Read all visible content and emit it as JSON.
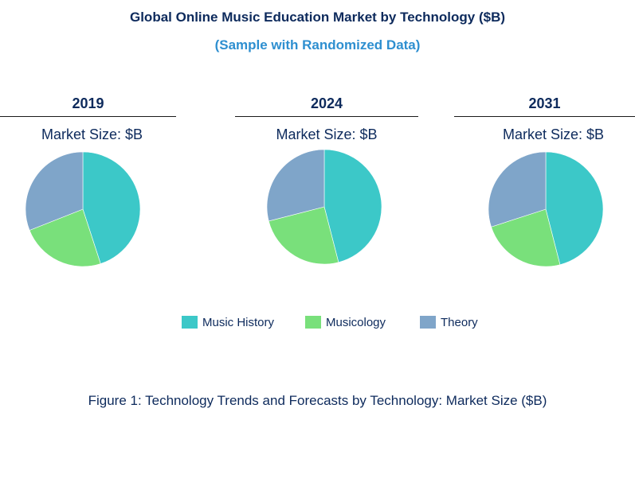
{
  "header": {
    "title": "Global Online Music Education Market by Technology ($B)",
    "subtitle": "(Sample with Randomized Data)"
  },
  "colors": {
    "music_history": "#3cc8c8",
    "musicology": "#79e07b",
    "theory": "#7fa5c9",
    "title": "#0d2a5c",
    "subtitle": "#2e8fd0"
  },
  "chart_data": [
    {
      "type": "pie",
      "title": "2019",
      "subtitle": "Market Size: $B",
      "labels": [
        "Music  History",
        "Musicology",
        "Theory"
      ],
      "values": [
        45,
        24,
        31
      ]
    },
    {
      "type": "pie",
      "title": "2024",
      "subtitle": "Market Size: $B",
      "labels": [
        "Music  History",
        "Musicology",
        "Theory"
      ],
      "values": [
        46,
        25,
        29
      ]
    },
    {
      "type": "pie",
      "title": "2031",
      "subtitle": "Market Size: $B",
      "labels": [
        "Music  History",
        "Musicology",
        "Theory"
      ],
      "values": [
        46,
        24,
        30
      ]
    }
  ],
  "legend": {
    "items": [
      "Music  History",
      "Musicology",
      "Theory"
    ]
  },
  "caption": "Figure 1: Technology Trends and Forecasts by Technology: Market Size ($B)"
}
